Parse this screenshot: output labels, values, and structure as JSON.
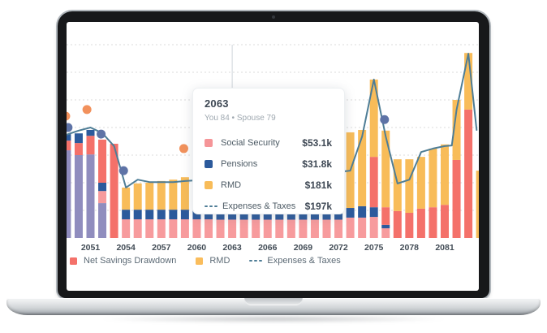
{
  "tooltip": {
    "title": "2063",
    "subtitle": "You 84 • Spouse 79",
    "rows": [
      {
        "icon": "square",
        "color": "#F59598",
        "label": "Social Security",
        "value": "$53.1k"
      },
      {
        "icon": "square",
        "color": "#2C5A9C",
        "label": "Pensions",
        "value": "$31.8k"
      },
      {
        "icon": "square",
        "color": "#F8BC59",
        "label": "RMD",
        "value": "$181k"
      },
      {
        "icon": "dashed-line",
        "color": "#4E7D96",
        "label": "Expenses & Taxes",
        "value": "$197k"
      }
    ]
  },
  "legend": [
    {
      "icon": "square",
      "color": "#F4716A",
      "label": "Net Savings Drawdown"
    },
    {
      "icon": "square",
      "color": "#FABD5C",
      "label": "RMD"
    },
    {
      "icon": "dashed-line",
      "color": "#4E7D96",
      "label": "Expenses & Taxes"
    }
  ],
  "chart_data": {
    "type": "combo: stacked-bar + line + scatter",
    "title": "Retirement income projection by year (hover tooltip shown for 2063)",
    "x_base": 2051,
    "x_ticks": [
      2051,
      2054,
      2057,
      2060,
      2063,
      2066,
      2069,
      2072,
      2075,
      2078,
      2081
    ],
    "ylim": [
      0,
      600
    ],
    "gridline_values": [
      80,
      160,
      240,
      320,
      400,
      480,
      560
    ],
    "grid": "dotted horizontal lines, no visible y-axis labels",
    "legend_position": "bottom-left",
    "tooltip_anchor_year": 2063,
    "colors": {
      "net-savings-drawdown": "#F4716A",
      "social-security": "#F79B9D",
      "pensions": "#2C5A9C",
      "rmd": "#F8BC59",
      "purple": "#908DBE",
      "line": "#4E7D96",
      "orange_dot": "#F2915C",
      "blue_dot": "#5E73A6",
      "grid": "#DBDBDB",
      "anchor": "#CFD5DA"
    },
    "bars": [
      {
        "year": 2049,
        "segments": [
          {
            "key": "purple",
            "value": 254
          },
          {
            "key": "net-savings-drawdown",
            "value": 28
          },
          {
            "key": "pensions",
            "value": 19
          }
        ]
      },
      {
        "year": 2050,
        "segments": [
          {
            "key": "purple",
            "value": 240
          },
          {
            "key": "net-savings-drawdown",
            "value": 35
          },
          {
            "key": "pensions",
            "value": 28
          }
        ]
      },
      {
        "year": 2051,
        "segments": [
          {
            "key": "purple",
            "value": 242
          },
          {
            "key": "net-savings-drawdown",
            "value": 54
          },
          {
            "key": "pensions",
            "value": 17
          }
        ]
      },
      {
        "year": 2052,
        "segments": [
          {
            "key": "purple",
            "value": 101
          },
          {
            "key": "social-security",
            "value": 35
          },
          {
            "key": "pensions",
            "value": 24
          },
          {
            "key": "net-savings-drawdown",
            "value": 125
          }
        ]
      },
      {
        "year": 2053,
        "segments": [
          {
            "key": "net-savings-drawdown",
            "value": 273
          }
        ]
      },
      {
        "year": 2054,
        "segments": [
          {
            "key": "social-security",
            "value": 54
          },
          {
            "key": "pensions",
            "value": 28
          },
          {
            "key": "rmd",
            "value": 64
          }
        ]
      },
      {
        "year": 2055,
        "segments": [
          {
            "key": "social-security",
            "value": 54
          },
          {
            "key": "pensions",
            "value": 28
          },
          {
            "key": "rmd",
            "value": 76
          }
        ]
      },
      {
        "year": 2056,
        "segments": [
          {
            "key": "social-security",
            "value": 54
          },
          {
            "key": "pensions",
            "value": 28
          },
          {
            "key": "rmd",
            "value": 78
          }
        ]
      },
      {
        "year": 2057,
        "segments": [
          {
            "key": "social-security",
            "value": 54
          },
          {
            "key": "pensions",
            "value": 28
          },
          {
            "key": "rmd",
            "value": 83
          }
        ]
      },
      {
        "year": 2058,
        "segments": [
          {
            "key": "social-security",
            "value": 54
          },
          {
            "key": "pensions",
            "value": 28
          },
          {
            "key": "rmd",
            "value": 87
          }
        ]
      },
      {
        "year": 2059,
        "segments": [
          {
            "key": "social-security",
            "value": 54
          },
          {
            "key": "pensions",
            "value": 28
          },
          {
            "key": "rmd",
            "value": 94
          }
        ]
      },
      {
        "year": 2060,
        "segments": [
          {
            "key": "social-security",
            "value": 54
          },
          {
            "key": "pensions",
            "value": 29
          },
          {
            "key": "rmd",
            "value": 110
          }
        ]
      },
      {
        "year": 2061,
        "segments": [
          {
            "key": "social-security",
            "value": 54
          },
          {
            "key": "pensions",
            "value": 30
          },
          {
            "key": "rmd",
            "value": 130
          }
        ]
      },
      {
        "year": 2062,
        "segments": [
          {
            "key": "social-security",
            "value": 53
          },
          {
            "key": "pensions",
            "value": 31
          },
          {
            "key": "rmd",
            "value": 155
          }
        ]
      },
      {
        "year": 2063,
        "segments": [
          {
            "key": "social-security",
            "value": 53.1
          },
          {
            "key": "pensions",
            "value": 31.8
          },
          {
            "key": "rmd",
            "value": 181
          }
        ]
      },
      {
        "year": 2064,
        "segments": [
          {
            "key": "social-security",
            "value": 53
          },
          {
            "key": "pensions",
            "value": 31
          },
          {
            "key": "rmd",
            "value": 196
          }
        ]
      },
      {
        "year": 2065,
        "segments": [
          {
            "key": "social-security",
            "value": 53
          },
          {
            "key": "pensions",
            "value": 31
          },
          {
            "key": "rmd",
            "value": 205
          }
        ]
      },
      {
        "year": 2066,
        "segments": [
          {
            "key": "social-security",
            "value": 53
          },
          {
            "key": "pensions",
            "value": 30
          },
          {
            "key": "rmd",
            "value": 212
          }
        ]
      },
      {
        "year": 2067,
        "segments": [
          {
            "key": "social-security",
            "value": 53
          },
          {
            "key": "pensions",
            "value": 30
          },
          {
            "key": "rmd",
            "value": 218
          }
        ]
      },
      {
        "year": 2068,
        "segments": [
          {
            "key": "social-security",
            "value": 53
          },
          {
            "key": "pensions",
            "value": 30
          },
          {
            "key": "rmd",
            "value": 222
          }
        ]
      },
      {
        "year": 2069,
        "segments": [
          {
            "key": "social-security",
            "value": 53
          },
          {
            "key": "pensions",
            "value": 29
          },
          {
            "key": "rmd",
            "value": 226
          }
        ]
      },
      {
        "year": 2070,
        "segments": [
          {
            "key": "social-security",
            "value": 53
          },
          {
            "key": "pensions",
            "value": 29
          },
          {
            "key": "rmd",
            "value": 228
          }
        ]
      },
      {
        "year": 2071,
        "segments": [
          {
            "key": "social-security",
            "value": 53
          },
          {
            "key": "pensions",
            "value": 29
          },
          {
            "key": "rmd",
            "value": 229
          }
        ]
      },
      {
        "year": 2072,
        "segments": [
          {
            "key": "social-security",
            "value": 53
          },
          {
            "key": "pensions",
            "value": 28
          },
          {
            "key": "rmd",
            "value": 223
          }
        ]
      },
      {
        "year": 2073,
        "segments": [
          {
            "key": "social-security",
            "value": 59
          },
          {
            "key": "pensions",
            "value": 28
          },
          {
            "key": "rmd",
            "value": 219
          }
        ]
      },
      {
        "year": 2074,
        "segments": [
          {
            "key": "social-security",
            "value": 59
          },
          {
            "key": "pensions",
            "value": 33
          },
          {
            "key": "rmd",
            "value": 221
          }
        ]
      },
      {
        "year": 2075,
        "segments": [
          {
            "key": "social-security",
            "value": 61
          },
          {
            "key": "pensions",
            "value": 28
          },
          {
            "key": "net-savings-drawdown",
            "value": 146
          },
          {
            "key": "rmd",
            "value": 224
          }
        ]
      },
      {
        "year": 2076,
        "segments": [
          {
            "key": "social-security",
            "value": 28
          },
          {
            "key": "pensions",
            "value": 10
          },
          {
            "key": "net-savings-drawdown",
            "value": 51
          },
          {
            "key": "rmd",
            "value": 222
          }
        ]
      },
      {
        "year": 2077,
        "segments": [
          {
            "key": "net-savings-drawdown",
            "value": 78
          },
          {
            "key": "rmd",
            "value": 150
          }
        ]
      },
      {
        "year": 2078,
        "segments": [
          {
            "key": "net-savings-drawdown",
            "value": 73
          },
          {
            "key": "rmd",
            "value": 155
          }
        ]
      },
      {
        "year": 2079,
        "segments": [
          {
            "key": "net-savings-drawdown",
            "value": 85
          },
          {
            "key": "rmd",
            "value": 150
          }
        ]
      },
      {
        "year": 2080,
        "segments": [
          {
            "key": "net-savings-drawdown",
            "value": 89
          },
          {
            "key": "rmd",
            "value": 170
          }
        ]
      },
      {
        "year": 2081,
        "segments": [
          {
            "key": "net-savings-drawdown",
            "value": 96
          },
          {
            "key": "rmd",
            "value": 175
          }
        ]
      },
      {
        "year": 2082,
        "segments": [
          {
            "key": "net-savings-drawdown",
            "value": 226
          },
          {
            "key": "rmd",
            "value": 174
          }
        ]
      },
      {
        "year": 2083,
        "segments": [
          {
            "key": "net-savings-drawdown",
            "value": 372
          },
          {
            "key": "rmd",
            "value": 164
          }
        ]
      },
      {
        "year": 2084,
        "segments": [
          {
            "key": "rmd",
            "value": 195
          }
        ]
      }
    ],
    "line": {
      "name": "Expenses & Taxes",
      "points": [
        [
          2048.7,
          296
        ],
        [
          2050,
          311
        ],
        [
          2051,
          320
        ],
        [
          2052,
          304
        ],
        [
          2053,
          266
        ],
        [
          2054,
          146
        ],
        [
          2055,
          169
        ],
        [
          2056,
          162
        ],
        [
          2057,
          162
        ],
        [
          2058,
          162
        ],
        [
          2059,
          165
        ],
        [
          2060,
          167
        ],
        [
          2061,
          172
        ],
        [
          2062,
          182
        ],
        [
          2063,
          197
        ],
        [
          2064,
          200
        ],
        [
          2065,
          202
        ],
        [
          2066,
          204
        ],
        [
          2067,
          205
        ],
        [
          2068,
          206
        ],
        [
          2069,
          205
        ],
        [
          2070,
          202
        ],
        [
          2071,
          196
        ],
        [
          2072,
          191
        ],
        [
          2073,
          195
        ],
        [
          2074,
          294
        ],
        [
          2075,
          459
        ],
        [
          2076,
          294
        ],
        [
          2077,
          158
        ],
        [
          2078,
          169
        ],
        [
          2079,
          249
        ],
        [
          2080,
          259
        ],
        [
          2081,
          266
        ],
        [
          2081.6,
          268
        ],
        [
          2082,
          372
        ],
        [
          2083,
          534
        ],
        [
          2083.7,
          313
        ]
      ]
    },
    "scatter": [
      {
        "year": 2048.9,
        "value": 353,
        "color": "orange_dot"
      },
      {
        "year": 2050.7,
        "value": 372,
        "color": "orange_dot"
      },
      {
        "year": 2058.9,
        "value": 259,
        "color": "orange_dot"
      },
      {
        "year": 2049.1,
        "value": 320,
        "color": "blue_dot"
      },
      {
        "year": 2051.9,
        "value": 301,
        "color": "blue_dot"
      },
      {
        "year": 2053.8,
        "value": 195,
        "color": "blue_dot"
      },
      {
        "year": 2075.9,
        "value": 343,
        "color": "blue_dot"
      }
    ]
  }
}
